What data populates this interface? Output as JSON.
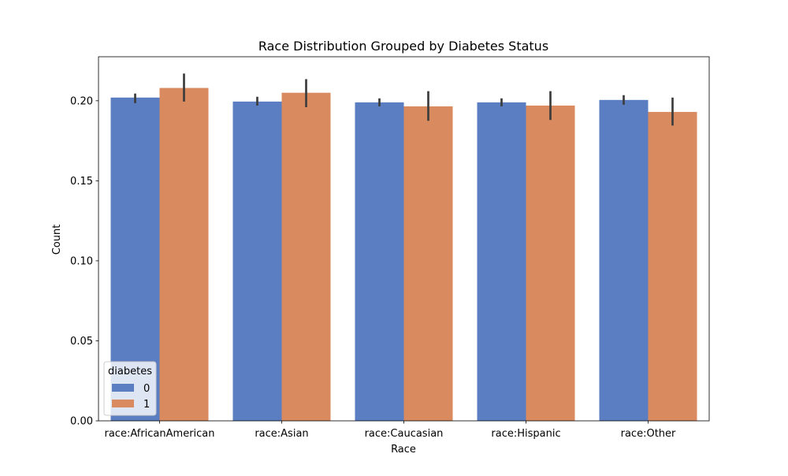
{
  "chart_data": {
    "type": "bar",
    "title": "Race Distribution Grouped by Diabetes Status",
    "xlabel": "Race",
    "ylabel": "Count",
    "categories": [
      "race:AfricanAmerican",
      "race:Asian",
      "race:Caucasian",
      "race:Hispanic",
      "race:Other"
    ],
    "series": [
      {
        "name": "0",
        "color": "#5a7ec1",
        "values": [
          0.202,
          0.1995,
          0.199,
          0.199,
          0.2005
        ],
        "error_low": [
          0.1985,
          0.197,
          0.1965,
          0.1965,
          0.1975
        ],
        "error_high": [
          0.2045,
          0.2025,
          0.2015,
          0.2015,
          0.2035
        ]
      },
      {
        "name": "1",
        "color": "#d98a5e",
        "values": [
          0.208,
          0.205,
          0.1965,
          0.197,
          0.193
        ],
        "error_low": [
          0.1995,
          0.196,
          0.1875,
          0.188,
          0.1845
        ],
        "error_high": [
          0.217,
          0.2135,
          0.206,
          0.206,
          0.202
        ]
      }
    ],
    "ylim": [
      0,
      0.2275
    ],
    "yticks": [
      "0.00",
      "0.05",
      "0.10",
      "0.15",
      "0.20"
    ],
    "grid": false,
    "legend": {
      "title": "diabetes",
      "position": "bottom-left"
    }
  }
}
